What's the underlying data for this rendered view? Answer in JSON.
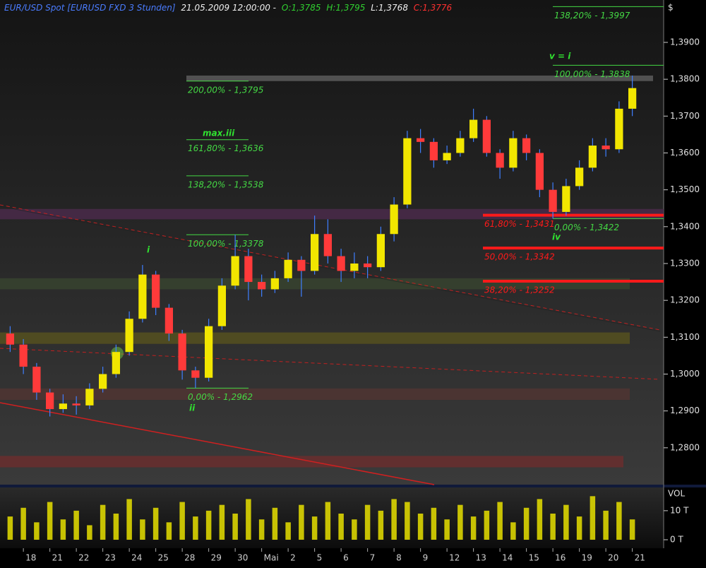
{
  "chart_data": {
    "type": "candlestick",
    "title": "EUR/USD Spot [EURUSD FXD  3 Stunden]",
    "timestamp": "21.05.2009 12:00:00 -",
    "ohlc_labels": [
      "O:1,3785",
      "H:1,3795",
      "L:1,3768",
      "C:1,3776"
    ],
    "currency": "$",
    "categories": [
      null,
      "18",
      null,
      "21",
      null,
      "22",
      null,
      "23",
      null,
      "24",
      null,
      "25",
      null,
      "28",
      null,
      "29",
      null,
      "30",
      null,
      "Mai",
      null,
      "2",
      null,
      "5",
      null,
      "6",
      null,
      "7",
      null,
      "8",
      null,
      "9",
      null,
      "12",
      null,
      "13",
      null,
      "14",
      null,
      "15",
      null,
      "16",
      null,
      "19",
      null,
      "20",
      null,
      "21"
    ],
    "open": [
      1.311,
      1.308,
      1.302,
      1.295,
      1.2905,
      1.292,
      1.2915,
      1.296,
      1.3,
      1.306,
      1.315,
      1.327,
      1.318,
      1.311,
      1.301,
      1.299,
      1.313,
      1.324,
      1.332,
      1.325,
      1.323,
      1.326,
      1.331,
      1.328,
      1.338,
      1.332,
      1.328,
      1.33,
      1.329,
      1.338,
      1.346,
      1.364,
      1.363,
      1.358,
      1.36,
      1.364,
      1.369,
      1.36,
      1.356,
      1.364,
      1.36,
      1.35,
      1.344,
      1.351,
      1.356,
      1.362,
      1.361,
      1.372
    ],
    "high": [
      1.313,
      1.3095,
      1.303,
      1.296,
      1.2945,
      1.294,
      1.2975,
      1.302,
      1.308,
      1.317,
      1.3296,
      1.328,
      1.319,
      1.312,
      1.302,
      1.315,
      1.326,
      1.3378,
      1.334,
      1.327,
      1.328,
      1.333,
      1.332,
      1.343,
      1.342,
      1.334,
      1.333,
      1.332,
      1.34,
      1.348,
      1.366,
      1.3665,
      1.364,
      1.362,
      1.366,
      1.372,
      1.37,
      1.361,
      1.366,
      1.365,
      1.361,
      1.352,
      1.353,
      1.358,
      1.364,
      1.364,
      1.374,
      1.381
    ],
    "low": [
      1.306,
      1.3,
      1.293,
      1.2885,
      1.2895,
      1.289,
      1.2905,
      1.295,
      1.299,
      1.305,
      1.314,
      1.316,
      1.309,
      1.2985,
      1.2962,
      1.298,
      1.312,
      1.323,
      1.32,
      1.321,
      1.322,
      1.325,
      1.321,
      1.327,
      1.33,
      1.325,
      1.326,
      1.326,
      1.328,
      1.336,
      1.345,
      1.36,
      1.356,
      1.357,
      1.359,
      1.363,
      1.359,
      1.353,
      1.355,
      1.358,
      1.348,
      1.3422,
      1.343,
      1.35,
      1.355,
      1.359,
      1.36,
      1.37
    ],
    "close": [
      1.308,
      1.302,
      1.295,
      1.2905,
      1.292,
      1.2915,
      1.296,
      1.3,
      1.306,
      1.315,
      1.327,
      1.318,
      1.311,
      1.301,
      1.299,
      1.313,
      1.324,
      1.332,
      1.325,
      1.323,
      1.326,
      1.331,
      1.328,
      1.338,
      1.332,
      1.328,
      1.33,
      1.329,
      1.338,
      1.346,
      1.364,
      1.363,
      1.358,
      1.36,
      1.364,
      1.369,
      1.36,
      1.356,
      1.364,
      1.36,
      1.35,
      1.344,
      1.351,
      1.356,
      1.362,
      1.361,
      1.372,
      1.3776
    ],
    "up_color": "#f2e600",
    "down_color": "#ff3a3a",
    "wick_color": "#3f7fff",
    "ylim": [
      1.27,
      1.4015
    ],
    "yticks": [
      {
        "value": 1.28,
        "label": "1,2800"
      },
      {
        "value": 1.29,
        "label": "1,2900"
      },
      {
        "value": 1.3,
        "label": "1,3000"
      },
      {
        "value": 1.31,
        "label": "1,3100"
      },
      {
        "value": 1.32,
        "label": "1,3200"
      },
      {
        "value": 1.33,
        "label": "1,3300"
      },
      {
        "value": 1.34,
        "label": "1,3400"
      },
      {
        "value": 1.35,
        "label": "1,3500"
      },
      {
        "value": 1.36,
        "label": "1,3600"
      },
      {
        "value": 1.37,
        "label": "1,3700"
      },
      {
        "value": 1.38,
        "label": "1,3800"
      },
      {
        "value": 1.39,
        "label": "1,3900"
      }
    ],
    "zones": [
      {
        "from": 1.3795,
        "to": 1.381,
        "color": "#5c5c5c"
      },
      {
        "from": 1.342,
        "to": 1.3448,
        "color": "#4a2a4a"
      },
      {
        "from": 1.323,
        "to": 1.326,
        "color": "#37432f"
      },
      {
        "from": 1.3082,
        "to": 1.3113,
        "color": "#55501e"
      },
      {
        "from": 1.293,
        "to": 1.2961,
        "color": "#503532"
      },
      {
        "from": 1.2747,
        "to": 1.2778,
        "color": "#6a2e2e"
      }
    ],
    "fib_left": {
      "color": "#44d844",
      "levels": [
        {
          "label": "200,00% - 1,3795",
          "value": 1.3795
        },
        {
          "label": "161,80% - 1,3636",
          "value": 1.3636
        },
        {
          "label": "138,20% - 1,3538",
          "value": 1.3538
        },
        {
          "label": "100,00% - 1,3378",
          "value": 1.3378
        },
        {
          "label": "0,00% - 1,2962",
          "value": 1.2962
        }
      ]
    },
    "fib_right": {
      "color": "#44d844",
      "levels": [
        {
          "label": "138,20% - 1,3997",
          "value": 1.3997
        },
        {
          "label": "100,00% - 1,3838",
          "value": 1.3838
        },
        {
          "label": "0,00% - 1,3422",
          "value": 1.3422
        }
      ]
    },
    "fib_red": {
      "color": "#ff1a1a",
      "levels": [
        {
          "label": "61,80% - 1,3431",
          "value": 1.3431
        },
        {
          "label": "50,00% - 1,3342",
          "value": 1.3342
        },
        {
          "label": "38,20% - 1,3252",
          "value": 1.3252
        }
      ]
    },
    "wave_labels": [
      "i",
      "ii",
      "max.iii",
      "iv",
      "v = i"
    ],
    "volume": {
      "label": "VOL",
      "color": "#e8e000",
      "values": [
        8,
        11,
        6,
        13,
        7,
        10,
        5,
        12,
        9,
        14,
        7,
        11,
        6,
        13,
        8,
        10,
        12,
        9,
        14,
        7,
        11,
        6,
        12,
        8,
        13,
        9,
        7,
        12,
        10,
        14,
        13,
        9,
        11,
        7,
        12,
        8,
        10,
        13,
        6,
        11,
        14,
        9,
        12,
        8,
        15,
        10,
        13,
        7
      ],
      "ylim": [
        0,
        18
      ],
      "yticks": [
        {
          "value": 0,
          "label": "0 T"
        },
        {
          "value": 10,
          "label": "10 T"
        }
      ]
    }
  }
}
